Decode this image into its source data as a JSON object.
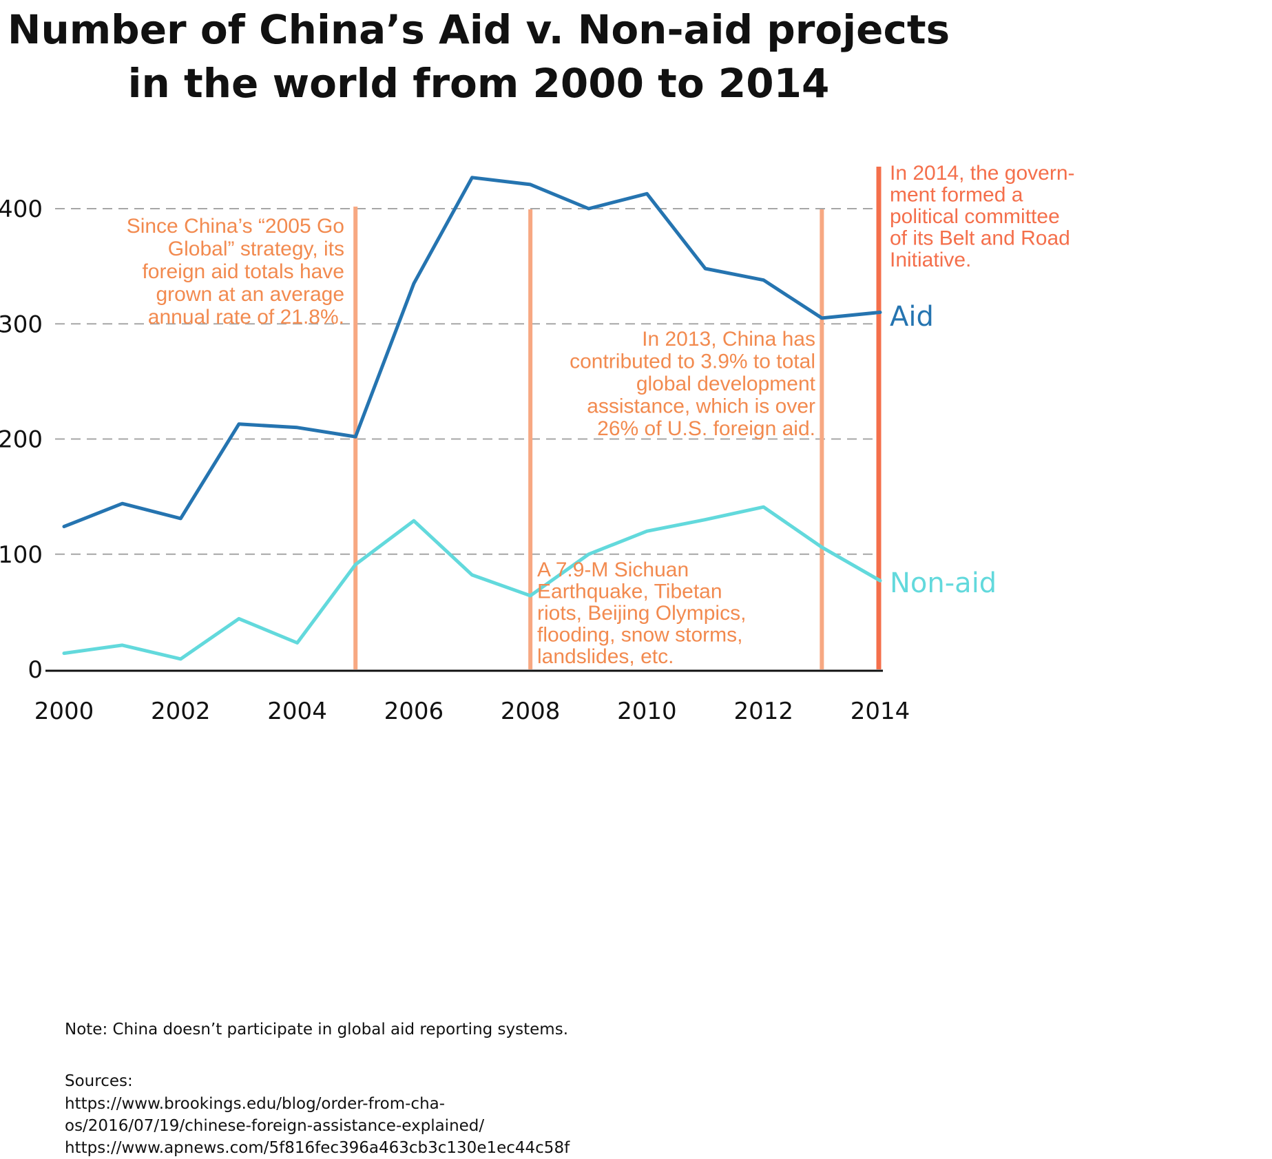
{
  "title": {
    "line1": "Number of China’s Aid v. Non-aid projects",
    "line2": "in the world from 2000 to 2014"
  },
  "colors": {
    "aid": "#2574b0",
    "non_aid": "#62d9dc",
    "marker_light": "#f7a882",
    "marker_strong": "#f46f4b",
    "annotation": "#f28a4f",
    "annotation_strong": "#f46f4b",
    "grid": "#a6a6a6"
  },
  "chart_data": {
    "type": "line",
    "x": [
      2000,
      2001,
      2002,
      2003,
      2004,
      2005,
      2006,
      2007,
      2008,
      2009,
      2010,
      2011,
      2012,
      2013,
      2014
    ],
    "series": [
      {
        "name": "Aid",
        "values": [
          124,
          144,
          131,
          213,
          210,
          202,
          335,
          427,
          421,
          400,
          413,
          348,
          338,
          305,
          310
        ]
      },
      {
        "name": "Non-aid",
        "values": [
          14,
          21,
          9,
          44,
          23,
          91,
          129,
          82,
          64,
          100,
          120,
          130,
          141,
          106,
          77
        ]
      }
    ],
    "xticks": [
      "2000",
      "2002",
      "2004",
      "2006",
      "2008",
      "2010",
      "2012",
      "2014"
    ],
    "yticks": [
      "0",
      "100",
      "200",
      "300",
      "400"
    ],
    "xlim": [
      2000,
      2014
    ],
    "ylim": [
      0,
      420
    ],
    "grid": "horizontal dashed",
    "legend": "direct labels at line ends",
    "markers": [
      {
        "year": 2005,
        "style": "light"
      },
      {
        "year": 2008,
        "style": "light"
      },
      {
        "year": 2013,
        "style": "light"
      },
      {
        "year": 2014,
        "style": "strong"
      }
    ],
    "annotations": [
      {
        "lines": [
          "Since China’s “2005 Go",
          "Global” strategy, its",
          "foreign aid totals have",
          "grown at an average",
          "annual rate of 21.8%."
        ]
      },
      {
        "lines": [
          "A 7.9-M Sichuan",
          "Earthquake, Tibetan",
          "riots, Beijing Olympics,",
          "flooding, snow storms,",
          "landslides, etc."
        ]
      },
      {
        "lines": [
          "In 2013, China has",
          "contributed to 3.9% to total",
          "global development",
          "assistance, which is over",
          "26% of U.S. foreign aid."
        ]
      },
      {
        "lines": [
          "In 2014, the govern-",
          "ment formed a",
          "political committee",
          "of its Belt and Road",
          "Initiative."
        ]
      }
    ]
  },
  "footer": {
    "note": "Note: China doesn’t participate in global aid reporting systems.",
    "sources_label": "Sources:",
    "source_lines": [
      "https://www.brookings.edu/blog/order-from-cha-",
      "os/2016/07/19/chinese-foreign-assistance-explained/",
      "https://www.apnews.com/5f816fec396a463cb3c130e1ec44c58f"
    ]
  }
}
